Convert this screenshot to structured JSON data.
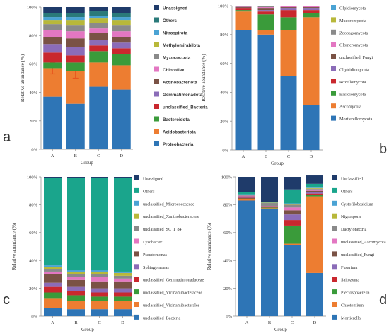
{
  "chart_data": [
    {
      "type": "bar",
      "stacked": true,
      "panel_label": "a",
      "categories": [
        "A",
        "B",
        "C",
        "D"
      ],
      "xlabel": "Group",
      "ylabel": "Relative abundance (%)",
      "ylim": [
        0,
        100
      ],
      "yticks": [
        "0%",
        "20%",
        "40%",
        "60%",
        "80%",
        "100%"
      ],
      "series": [
        {
          "name": "Proteobacteria",
          "color": "#2e75b6",
          "values": [
            37,
            32,
            44,
            42
          ]
        },
        {
          "name": "Acidobacteriota",
          "color": "#ed7d31",
          "values": [
            20,
            23,
            17,
            17
          ]
        },
        {
          "name": "Bacteroidota",
          "color": "#3a9b3a",
          "values": [
            4,
            6,
            8,
            8
          ]
        },
        {
          "name": "unclassified_Bacteria",
          "color": "#c9282e",
          "values": [
            7,
            5,
            4,
            4
          ]
        },
        {
          "name": "Gemmatimonadota",
          "color": "#8b6cb8",
          "values": [
            6,
            6,
            4,
            4
          ]
        },
        {
          "name": "Actinobacteriota",
          "color": "#7a5245",
          "values": [
            5,
            6,
            5,
            4
          ]
        },
        {
          "name": "Chloroflexi",
          "color": "#e377c2",
          "values": [
            5,
            5,
            3,
            4
          ]
        },
        {
          "name": "Myxococcota",
          "color": "#8a8a8a",
          "values": [
            4,
            4,
            4,
            4
          ]
        },
        {
          "name": "Methylomirabilota",
          "color": "#b8b83a",
          "values": [
            3,
            4,
            3,
            4
          ]
        },
        {
          "name": "Nitrospirota",
          "color": "#4aa3d4",
          "values": [
            2,
            2,
            2,
            2
          ]
        },
        {
          "name": "Others",
          "color": "#2a7a7a",
          "values": [
            3,
            3,
            3,
            3
          ]
        },
        {
          "name": "Unassigned",
          "color": "#1f3b6a",
          "values": [
            4,
            4,
            3,
            4
          ]
        }
      ],
      "error_bars": {
        "series": "Acidobacteriota",
        "values": [
          4,
          5,
          0,
          0
        ]
      }
    },
    {
      "type": "bar",
      "stacked": true,
      "panel_label": "b",
      "categories": [
        "A",
        "B",
        "C",
        "D"
      ],
      "xlabel": "Group",
      "ylabel": "Relative abundance (%)",
      "ylim": [
        0,
        100
      ],
      "yticks": [
        "0%",
        "20%",
        "40%",
        "60%",
        "80%",
        "100%"
      ],
      "series": [
        {
          "name": "Mortierellomycota",
          "color": "#2e75b6",
          "values": [
            83,
            80,
            51,
            31
          ]
        },
        {
          "name": "Ascomycota",
          "color": "#ed7d31",
          "values": [
            13,
            3,
            32,
            61
          ]
        },
        {
          "name": "Basidiomycota",
          "color": "#3a9b3a",
          "values": [
            1,
            11,
            9,
            3
          ]
        },
        {
          "name": "Rozellomycota",
          "color": "#c9282e",
          "values": [
            1,
            2,
            5,
            2
          ]
        },
        {
          "name": "Chytridiomycota",
          "color": "#8b6cb8",
          "values": [
            0.5,
            1,
            1,
            1
          ]
        },
        {
          "name": "unclassified_Fungi",
          "color": "#7a5245",
          "values": [
            0.5,
            1,
            1,
            1
          ]
        },
        {
          "name": "Glomeromycota",
          "color": "#e377c2",
          "values": [
            0.3,
            1,
            0.5,
            0.5
          ]
        },
        {
          "name": "Zoopagomycota",
          "color": "#8a8a8a",
          "values": [
            0.3,
            0.5,
            0.2,
            0.2
          ]
        },
        {
          "name": "Mucoromycota",
          "color": "#b8b83a",
          "values": [
            0.2,
            0.3,
            0.2,
            0.2
          ]
        },
        {
          "name": "Olpidiomycota",
          "color": "#4aa3d4",
          "values": [
            0.2,
            0.2,
            0.1,
            0.1
          ]
        }
      ]
    },
    {
      "type": "bar",
      "stacked": true,
      "panel_label": "c",
      "categories": [
        "A",
        "B",
        "C",
        "D"
      ],
      "xlabel": "Group",
      "ylabel": "Relative abundance (%)",
      "ylim": [
        0,
        100
      ],
      "yticks": [
        "0%",
        "20%",
        "40%",
        "60%",
        "80%",
        "100%"
      ],
      "series": [
        {
          "name": "unclassified_Bacteria",
          "color": "#2e75b6",
          "values": [
            6,
            5,
            5,
            5
          ]
        },
        {
          "name": "unclassified_Vicinamibacterales",
          "color": "#ed7d31",
          "values": [
            7,
            6,
            6,
            6
          ]
        },
        {
          "name": "unclassified_Vicinamibacteraceae",
          "color": "#3a9b3a",
          "values": [
            4,
            4,
            3,
            3
          ]
        },
        {
          "name": "unclassified_Gemmatimonadaceae",
          "color": "#c9282e",
          "values": [
            4,
            3,
            3,
            3
          ]
        },
        {
          "name": "Sphingomonas",
          "color": "#8b6cb8",
          "values": [
            3,
            3,
            3,
            3
          ]
        },
        {
          "name": "Pseudomonas",
          "color": "#7a5245",
          "values": [
            6,
            5,
            5,
            5
          ]
        },
        {
          "name": "Lysobacter",
          "color": "#e377c2",
          "values": [
            2,
            2,
            3,
            2
          ]
        },
        {
          "name": "unclassified_SC_I_84",
          "color": "#8a8a8a",
          "values": [
            2,
            2,
            2,
            2
          ]
        },
        {
          "name": "unclassified_Xanthobacteraceae",
          "color": "#b8b83a",
          "values": [
            1.5,
            2,
            2,
            2
          ]
        },
        {
          "name": "unclassified_Micrococcaceae",
          "color": "#4aa3d4",
          "values": [
            1,
            1,
            1.5,
            1
          ]
        },
        {
          "name": "Others",
          "color": "#1aa58c",
          "values": [
            62.5,
            66,
            65.5,
            67
          ]
        },
        {
          "name": "Unassigned",
          "color": "#1f3b6a",
          "values": [
            1,
            1,
            1,
            1
          ]
        }
      ]
    },
    {
      "type": "bar",
      "stacked": true,
      "panel_label": "d",
      "categories": [
        "A",
        "B",
        "C",
        "D"
      ],
      "xlabel": "Group",
      "ylabel": "Relative abundance (%)",
      "ylim": [
        0,
        100
      ],
      "yticks": [
        "0%",
        "20%",
        "40%",
        "60%",
        "80%",
        "100%"
      ],
      "series": [
        {
          "name": "Mortierella",
          "color": "#2e75b6",
          "values": [
            83,
            77,
            51,
            31
          ]
        },
        {
          "name": "Chaetomium",
          "color": "#ed7d31",
          "values": [
            1,
            0.5,
            1,
            55
          ]
        },
        {
          "name": "Plectosphaerella",
          "color": "#3a9b3a",
          "values": [
            0.5,
            0.5,
            13,
            1
          ]
        },
        {
          "name": "Saitozyma",
          "color": "#c9282e",
          "values": [
            0.5,
            0.3,
            4,
            1
          ]
        },
        {
          "name": "Fusarium",
          "color": "#8b6cb8",
          "values": [
            0.5,
            0.3,
            4,
            1
          ]
        },
        {
          "name": "unclassified_Fungi",
          "color": "#7a5245",
          "values": [
            0.5,
            0.3,
            3,
            1
          ]
        },
        {
          "name": "unclassified_Ascomycota",
          "color": "#e377c2",
          "values": [
            0.5,
            0.3,
            2,
            1
          ]
        },
        {
          "name": "Dactylonectria",
          "color": "#8a8a8a",
          "values": [
            0.5,
            2,
            2,
            0.5
          ]
        },
        {
          "name": "Nigrospora",
          "color": "#b8b83a",
          "values": [
            0.3,
            0.3,
            0.5,
            0.5
          ]
        },
        {
          "name": "Cystofilobasidium",
          "color": "#4aa3d4",
          "values": [
            0.2,
            0.2,
            0.5,
            0.5
          ]
        },
        {
          "name": "Others",
          "color": "#1aa58c",
          "values": [
            1.5,
            0.3,
            10,
            2.5
          ]
        },
        {
          "name": "Unclassified",
          "color": "#1f3b6a",
          "values": [
            11,
            18,
            9,
            6
          ]
        }
      ]
    }
  ]
}
